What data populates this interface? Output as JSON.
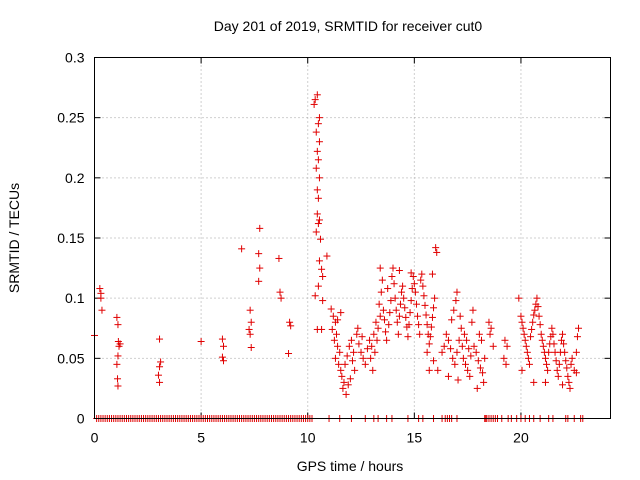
{
  "chart_data": {
    "type": "scatter",
    "title": "Day 201 of 2019, SRMTID for receiver cut0",
    "xlabel": "GPS time / hours",
    "ylabel": "SRMTID / TECUs",
    "xlim": [
      0,
      24.2
    ],
    "ylim": [
      0,
      0.3
    ],
    "x_ticks": [
      0,
      5,
      10,
      15,
      20
    ],
    "x_tick_labels": [
      "0",
      "5",
      "10",
      "15",
      "20"
    ],
    "y_ticks": [
      0,
      0.05,
      0.1,
      0.15,
      0.2,
      0.25,
      0.3
    ],
    "y_tick_labels": [
      "0",
      "0.05",
      "0.1",
      "0.15",
      "0.2",
      "0.25",
      "0.3"
    ],
    "grid": true,
    "marker": "+",
    "color": "#e00000",
    "series": [
      {
        "name": "SRMTID",
        "points": [
          [
            0.0,
            0.069
          ],
          [
            0.25,
            0.108
          ],
          [
            0.3,
            0.104
          ],
          [
            0.3,
            0.1
          ],
          [
            0.35,
            0.09
          ],
          [
            1.05,
            0.084
          ],
          [
            1.1,
            0.078
          ],
          [
            1.12,
            0.064
          ],
          [
            1.15,
            0.06
          ],
          [
            1.1,
            0.052
          ],
          [
            1.05,
            0.045
          ],
          [
            1.08,
            0.033
          ],
          [
            1.1,
            0.027
          ],
          [
            1.2,
            0.062
          ],
          [
            3.05,
            0.066
          ],
          [
            3.1,
            0.047
          ],
          [
            3.05,
            0.043
          ],
          [
            3.0,
            0.036
          ],
          [
            3.05,
            0.03
          ],
          [
            5.0,
            0.064
          ],
          [
            6.0,
            0.066
          ],
          [
            6.05,
            0.06
          ],
          [
            6.0,
            0.051
          ],
          [
            6.05,
            0.048
          ],
          [
            6.9,
            0.141
          ],
          [
            7.3,
            0.09
          ],
          [
            7.35,
            0.08
          ],
          [
            7.25,
            0.074
          ],
          [
            7.3,
            0.07
          ],
          [
            7.35,
            0.059
          ],
          [
            7.75,
            0.158
          ],
          [
            7.7,
            0.137
          ],
          [
            7.75,
            0.125
          ],
          [
            7.7,
            0.114
          ],
          [
            8.65,
            0.133
          ],
          [
            8.7,
            0.105
          ],
          [
            8.75,
            0.1
          ],
          [
            9.15,
            0.08
          ],
          [
            9.2,
            0.077
          ],
          [
            9.1,
            0.054
          ],
          [
            10.3,
            0.261
          ],
          [
            10.45,
            0.269
          ],
          [
            10.35,
            0.265
          ],
          [
            10.55,
            0.25
          ],
          [
            10.5,
            0.245
          ],
          [
            10.4,
            0.238
          ],
          [
            10.55,
            0.23
          ],
          [
            10.45,
            0.222
          ],
          [
            10.5,
            0.215
          ],
          [
            10.4,
            0.208
          ],
          [
            10.55,
            0.2
          ],
          [
            10.45,
            0.19
          ],
          [
            10.5,
            0.183
          ],
          [
            10.45,
            0.17
          ],
          [
            10.55,
            0.165
          ],
          [
            10.5,
            0.162
          ],
          [
            10.4,
            0.155
          ],
          [
            10.6,
            0.149
          ],
          [
            10.55,
            0.131
          ],
          [
            10.65,
            0.124
          ],
          [
            10.7,
            0.118
          ],
          [
            10.5,
            0.11
          ],
          [
            10.35,
            0.102
          ],
          [
            10.7,
            0.098
          ],
          [
            10.45,
            0.074
          ],
          [
            10.65,
            0.074
          ],
          [
            10.9,
            0.135
          ],
          [
            11.1,
            0.091
          ],
          [
            11.2,
            0.085
          ],
          [
            11.3,
            0.08
          ],
          [
            11.15,
            0.074
          ],
          [
            11.35,
            0.07
          ],
          [
            11.25,
            0.065
          ],
          [
            11.4,
            0.06
          ],
          [
            11.5,
            0.055
          ],
          [
            11.3,
            0.05
          ],
          [
            11.45,
            0.045
          ],
          [
            11.55,
            0.04
          ],
          [
            11.6,
            0.035
          ],
          [
            11.7,
            0.03
          ],
          [
            11.65,
            0.025
          ],
          [
            11.8,
            0.02
          ],
          [
            11.9,
            0.028
          ],
          [
            12.0,
            0.033
          ],
          [
            11.75,
            0.045
          ],
          [
            11.85,
            0.052
          ],
          [
            11.95,
            0.06
          ],
          [
            12.1,
            0.048
          ],
          [
            12.2,
            0.04
          ],
          [
            12.05,
            0.065
          ],
          [
            12.15,
            0.055
          ],
          [
            11.55,
            0.088
          ],
          [
            11.4,
            0.082
          ],
          [
            12.3,
            0.07
          ],
          [
            12.4,
            0.062
          ],
          [
            12.5,
            0.055
          ],
          [
            12.35,
            0.075
          ],
          [
            12.6,
            0.05
          ],
          [
            12.7,
            0.045
          ],
          [
            12.55,
            0.068
          ],
          [
            12.8,
            0.058
          ],
          [
            12.9,
            0.065
          ],
          [
            13.0,
            0.06
          ],
          [
            13.1,
            0.07
          ],
          [
            12.95,
            0.05
          ],
          [
            13.05,
            0.04
          ],
          [
            13.15,
            0.055
          ],
          [
            13.25,
            0.065
          ],
          [
            13.2,
            0.08
          ],
          [
            13.3,
            0.075
          ],
          [
            13.4,
            0.085
          ],
          [
            13.35,
            0.095
          ],
          [
            13.45,
            0.105
          ],
          [
            13.5,
            0.115
          ],
          [
            13.55,
            0.09
          ],
          [
            13.6,
            0.082
          ],
          [
            13.65,
            0.072
          ],
          [
            13.7,
            0.065
          ],
          [
            13.8,
            0.078
          ],
          [
            13.85,
            0.088
          ],
          [
            13.9,
            0.098
          ],
          [
            13.75,
            0.108
          ],
          [
            13.95,
            0.118
          ],
          [
            14.0,
            0.125
          ],
          [
            14.05,
            0.112
          ],
          [
            14.1,
            0.1
          ],
          [
            14.15,
            0.09
          ],
          [
            14.2,
            0.08
          ],
          [
            14.25,
            0.07
          ],
          [
            14.3,
            0.085
          ],
          [
            14.35,
            0.095
          ],
          [
            14.4,
            0.105
          ],
          [
            14.45,
            0.11
          ],
          [
            14.5,
            0.1
          ],
          [
            14.55,
            0.092
          ],
          [
            14.6,
            0.084
          ],
          [
            14.65,
            0.076
          ],
          [
            14.7,
            0.068
          ],
          [
            14.75,
            0.078
          ],
          [
            14.8,
            0.088
          ],
          [
            14.85,
            0.098
          ],
          [
            14.9,
            0.108
          ],
          [
            14.95,
            0.118
          ],
          [
            15.0,
            0.112
          ],
          [
            15.05,
            0.105
          ],
          [
            15.1,
            0.095
          ],
          [
            15.15,
            0.085
          ],
          [
            15.2,
            0.078
          ],
          [
            15.25,
            0.07
          ],
          [
            15.3,
            0.115
          ],
          [
            15.35,
            0.12
          ],
          [
            15.4,
            0.11
          ],
          [
            15.45,
            0.102
          ],
          [
            15.5,
            0.094
          ],
          [
            15.55,
            0.086
          ],
          [
            15.6,
            0.078
          ],
          [
            15.65,
            0.07
          ],
          [
            15.7,
            0.062
          ],
          [
            15.75,
            0.068
          ],
          [
            15.8,
            0.076
          ],
          [
            15.85,
            0.084
          ],
          [
            15.9,
            0.092
          ],
          [
            15.95,
            0.1
          ],
          [
            16.0,
            0.142
          ],
          [
            16.05,
            0.138
          ],
          [
            15.85,
            0.12
          ],
          [
            14.3,
            0.123
          ],
          [
            13.4,
            0.125
          ],
          [
            14.85,
            0.121
          ],
          [
            15.6,
            0.055
          ],
          [
            15.9,
            0.048
          ],
          [
            16.1,
            0.04
          ],
          [
            15.7,
            0.04
          ],
          [
            16.3,
            0.055
          ],
          [
            16.4,
            0.06
          ],
          [
            16.5,
            0.07
          ],
          [
            16.6,
            0.065
          ],
          [
            16.7,
            0.058
          ],
          [
            16.8,
            0.05
          ],
          [
            16.9,
            0.045
          ],
          [
            17.0,
            0.055
          ],
          [
            17.1,
            0.065
          ],
          [
            17.2,
            0.075
          ],
          [
            16.75,
            0.082
          ],
          [
            16.85,
            0.09
          ],
          [
            16.95,
            0.098
          ],
          [
            17.0,
            0.105
          ],
          [
            17.15,
            0.085
          ],
          [
            17.25,
            0.06
          ],
          [
            17.3,
            0.05
          ],
          [
            17.4,
            0.045
          ],
          [
            17.5,
            0.04
          ],
          [
            17.6,
            0.035
          ],
          [
            17.35,
            0.07
          ],
          [
            17.45,
            0.065
          ],
          [
            17.55,
            0.058
          ],
          [
            17.65,
            0.052
          ],
          [
            17.7,
            0.08
          ],
          [
            17.75,
            0.09
          ],
          [
            17.8,
            0.06
          ],
          [
            17.9,
            0.055
          ],
          [
            18.0,
            0.048
          ],
          [
            18.1,
            0.042
          ],
          [
            18.2,
            0.038
          ],
          [
            18.25,
            0.03
          ],
          [
            18.05,
            0.07
          ],
          [
            18.15,
            0.065
          ],
          [
            18.3,
            0.05
          ],
          [
            18.5,
            0.08
          ],
          [
            18.6,
            0.075
          ],
          [
            18.55,
            0.07
          ],
          [
            18.7,
            0.06
          ],
          [
            17.05,
            0.032
          ],
          [
            16.6,
            0.035
          ],
          [
            17.95,
            0.025
          ],
          [
            19.2,
            0.05
          ],
          [
            19.3,
            0.045
          ],
          [
            19.25,
            0.065
          ],
          [
            19.35,
            0.06
          ],
          [
            19.9,
            0.1
          ],
          [
            20.0,
            0.085
          ],
          [
            20.05,
            0.08
          ],
          [
            20.1,
            0.075
          ],
          [
            20.15,
            0.07
          ],
          [
            20.2,
            0.065
          ],
          [
            20.25,
            0.06
          ],
          [
            20.3,
            0.055
          ],
          [
            20.35,
            0.05
          ],
          [
            20.4,
            0.045
          ],
          [
            20.45,
            0.068
          ],
          [
            20.5,
            0.074
          ],
          [
            20.55,
            0.08
          ],
          [
            20.6,
            0.086
          ],
          [
            20.65,
            0.09
          ],
          [
            20.7,
            0.095
          ],
          [
            20.75,
            0.1
          ],
          [
            20.8,
            0.093
          ],
          [
            20.85,
            0.085
          ],
          [
            20.9,
            0.078
          ],
          [
            20.95,
            0.07
          ],
          [
            21.0,
            0.065
          ],
          [
            21.05,
            0.06
          ],
          [
            21.1,
            0.055
          ],
          [
            21.15,
            0.05
          ],
          [
            21.2,
            0.045
          ],
          [
            21.25,
            0.04
          ],
          [
            21.3,
            0.055
          ],
          [
            21.35,
            0.062
          ],
          [
            21.4,
            0.068
          ],
          [
            21.45,
            0.075
          ],
          [
            21.5,
            0.07
          ],
          [
            21.55,
            0.062
          ],
          [
            21.6,
            0.055
          ],
          [
            21.65,
            0.048
          ],
          [
            21.7,
            0.04
          ],
          [
            21.75,
            0.035
          ],
          [
            21.8,
            0.045
          ],
          [
            21.85,
            0.055
          ],
          [
            21.9,
            0.065
          ],
          [
            21.95,
            0.07
          ],
          [
            22.0,
            0.062
          ],
          [
            22.05,
            0.055
          ],
          [
            22.1,
            0.048
          ],
          [
            22.15,
            0.042
          ],
          [
            22.2,
            0.035
          ],
          [
            22.25,
            0.03
          ],
          [
            22.3,
            0.025
          ],
          [
            22.35,
            0.045
          ],
          [
            22.4,
            0.05
          ],
          [
            22.5,
            0.04
          ],
          [
            22.6,
            0.038
          ],
          [
            22.65,
            0.068
          ],
          [
            22.7,
            0.075
          ],
          [
            22.6,
            0.055
          ],
          [
            21.15,
            0.03
          ],
          [
            20.6,
            0.03
          ],
          [
            20.05,
            0.04
          ],
          [
            21.95,
            0.028
          ]
        ],
        "zero_points_x": [
          0.1,
          0.2,
          0.3,
          0.4,
          0.5,
          0.6,
          0.7,
          0.8,
          0.9,
          1.0,
          1.1,
          1.2,
          1.3,
          1.4,
          1.5,
          1.6,
          1.7,
          1.8,
          1.9,
          2.0,
          2.1,
          2.2,
          2.3,
          2.4,
          2.5,
          2.6,
          2.7,
          2.8,
          2.9,
          3.0,
          3.1,
          3.2,
          3.3,
          3.4,
          3.5,
          3.6,
          3.7,
          3.8,
          3.9,
          4.0,
          4.1,
          4.2,
          4.3,
          4.4,
          4.5,
          4.6,
          4.7,
          4.8,
          4.9,
          5.0,
          5.1,
          5.2,
          5.3,
          5.4,
          5.5,
          5.6,
          5.7,
          5.8,
          5.9,
          6.0,
          6.1,
          6.2,
          6.3,
          6.4,
          6.5,
          6.6,
          6.7,
          6.8,
          6.9,
          7.0,
          7.1,
          7.2,
          7.3,
          7.4,
          7.5,
          7.6,
          7.7,
          7.8,
          7.9,
          8.0,
          8.1,
          8.2,
          8.3,
          8.4,
          8.5,
          8.6,
          8.7,
          8.8,
          8.9,
          9.0,
          9.1,
          9.2,
          9.3,
          9.4,
          9.5,
          9.6,
          9.7,
          9.8,
          9.9,
          10.0,
          10.1,
          10.2,
          11.0,
          11.5,
          12.05,
          12.7,
          13.1,
          13.3,
          13.7,
          13.95,
          14.7,
          15.2,
          15.4,
          15.9,
          16.3,
          16.45,
          16.55,
          16.65,
          16.75,
          17.0,
          18.3,
          18.35,
          18.4,
          18.5,
          18.6,
          18.7,
          18.8,
          18.9,
          19.1,
          19.4,
          19.55,
          19.8,
          20.0,
          20.2,
          20.4,
          20.6,
          20.9,
          21.3,
          21.5,
          22.1,
          22.2,
          22.5,
          22.8,
          22.9
        ]
      }
    ]
  }
}
